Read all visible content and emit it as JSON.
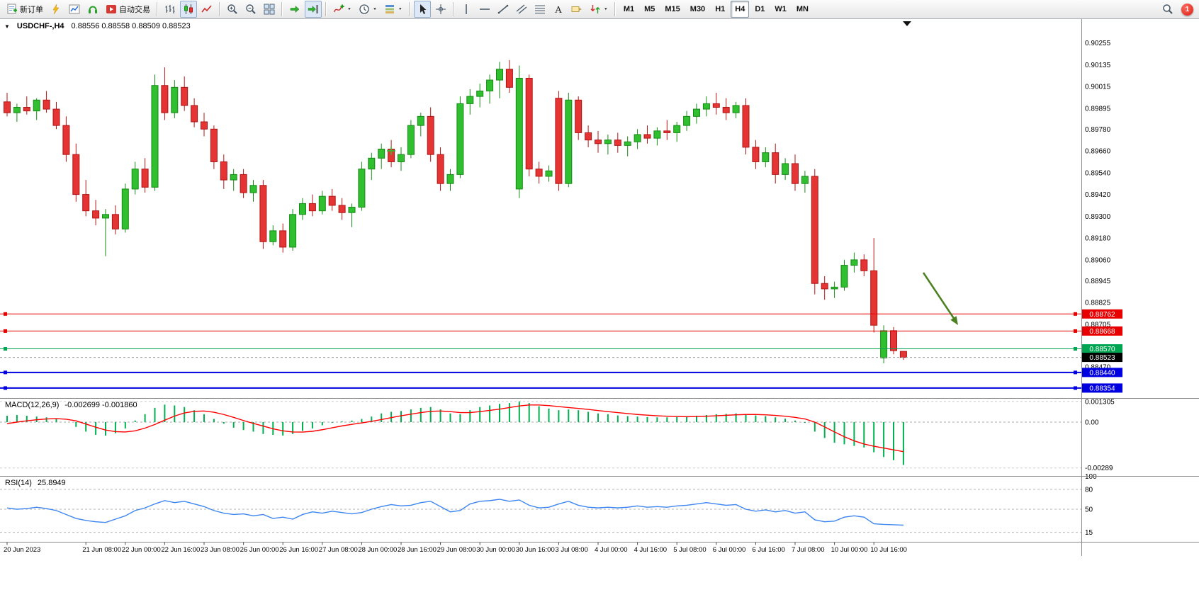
{
  "toolbar": {
    "items": [
      {
        "type": "btn",
        "name": "new-order-button",
        "icon": "new-order",
        "label": "新订单"
      },
      {
        "type": "btn",
        "name": "charts-button",
        "icon": "lightning"
      },
      {
        "type": "btn",
        "name": "chart-window-button",
        "icon": "chart-window"
      },
      {
        "type": "btn",
        "name": "sounds-button",
        "icon": "headset"
      },
      {
        "type": "btn",
        "name": "autotrading-button",
        "icon": "autotrade",
        "label": "自动交易"
      },
      {
        "type": "sep"
      },
      {
        "type": "btn",
        "name": "bar-chart-button",
        "icon": "ohlc-bars"
      },
      {
        "type": "btn",
        "name": "candlestick-chart-button",
        "icon": "candles",
        "active": true
      },
      {
        "type": "btn",
        "name": "line-chart-button",
        "icon": "line-chart"
      },
      {
        "type": "sep"
      },
      {
        "type": "btn",
        "name": "zoom-in-button",
        "icon": "zoom-in"
      },
      {
        "type": "btn",
        "name": "zoom-out-button",
        "icon": "zoom-out"
      },
      {
        "type": "btn",
        "name": "tile-windows-button",
        "icon": "tile-windows"
      },
      {
        "type": "sep"
      },
      {
        "type": "btn",
        "name": "auto-scroll-button",
        "icon": "auto-scroll"
      },
      {
        "type": "btn",
        "name": "chart-shift-button",
        "icon": "chart-shift",
        "active": true
      },
      {
        "type": "sep"
      },
      {
        "type": "btn",
        "name": "indicators-button",
        "icon": "indicators",
        "caret": true
      },
      {
        "type": "btn",
        "name": "periods-button",
        "icon": "periods",
        "caret": true
      },
      {
        "type": "btn",
        "name": "templates-button",
        "icon": "templates",
        "caret": true
      },
      {
        "type": "sep"
      },
      {
        "type": "btn",
        "name": "cursor-button",
        "icon": "cursor",
        "active": true
      },
      {
        "type": "btn",
        "name": "crosshair-button",
        "icon": "crosshair"
      },
      {
        "type": "sep"
      },
      {
        "type": "btn",
        "name": "vertical-line-button",
        "icon": "vline"
      },
      {
        "type": "btn",
        "name": "horizontal-line-button",
        "icon": "hline"
      },
      {
        "type": "btn",
        "name": "trendline-button",
        "icon": "trendline"
      },
      {
        "type": "btn",
        "name": "channel-button",
        "icon": "channel"
      },
      {
        "type": "btn",
        "name": "fibonacci-button",
        "icon": "fibo"
      },
      {
        "type": "btn",
        "name": "text-button",
        "icon": "text"
      },
      {
        "type": "btn",
        "name": "text-label-button",
        "icon": "text-label"
      },
      {
        "type": "btn",
        "name": "arrows-button",
        "icon": "arrows",
        "caret": true
      },
      {
        "type": "sep"
      },
      {
        "type": "tf",
        "name": "timeframe-m1",
        "label": "M1"
      },
      {
        "type": "tf",
        "name": "timeframe-m5",
        "label": "M5"
      },
      {
        "type": "tf",
        "name": "timeframe-m15",
        "label": "M15"
      },
      {
        "type": "tf",
        "name": "timeframe-m30",
        "label": "M30"
      },
      {
        "type": "tf",
        "name": "timeframe-h1",
        "label": "H1"
      },
      {
        "type": "tf",
        "name": "timeframe-h4",
        "label": "H4",
        "active": true
      },
      {
        "type": "tf",
        "name": "timeframe-d1",
        "label": "D1"
      },
      {
        "type": "tf",
        "name": "timeframe-w1",
        "label": "W1"
      },
      {
        "type": "tf",
        "name": "timeframe-mn",
        "label": "MN"
      }
    ],
    "right": {
      "search_icon": "search",
      "notification_count": "1"
    }
  },
  "chart_data": {
    "type": "candlestick",
    "symbol": "USDCHF",
    "timeframe": "H4",
    "title": "USDCHF-,H4",
    "ohlc_text": "0.88556 0.88558 0.88509 0.88523",
    "current": {
      "open": 0.88556,
      "high": 0.88558,
      "low": 0.88509,
      "close": 0.88523
    },
    "colors": {
      "up": "#2fbf2f",
      "up_stroke": "#168a16",
      "down": "#e43434",
      "down_stroke": "#b01515",
      "red_line": "#e80000",
      "green_line": "#00a551",
      "blue_line": "#0000e0",
      "bid_tag": "#000000",
      "macd_hist": "#00b050",
      "macd_signal": "#ff0000",
      "rsi_line": "#3d85f0",
      "arrow": "#4c8122"
    },
    "axis_prices": [
      0.90255,
      0.90135,
      0.90015,
      0.89895,
      0.8978,
      0.8966,
      0.8954,
      0.8942,
      0.893,
      0.8918,
      0.8906,
      0.88945,
      0.88825,
      0.88705,
      0.8847
    ],
    "hlines": [
      {
        "name": "resistance-line-1",
        "price": 0.88762,
        "label": "0.88762",
        "color": "#e80000",
        "width": 1
      },
      {
        "name": "resistance-line-2",
        "price": 0.88668,
        "label": "0.88668",
        "color": "#e80000",
        "width": 1
      },
      {
        "name": "support-line-green",
        "price": 0.8857,
        "label": "0.88570",
        "color": "#00a551",
        "width": 1
      },
      {
        "name": "support-line-blue-1",
        "price": 0.8844,
        "label": "0.88440",
        "color": "#0000e0",
        "width": 2
      },
      {
        "name": "support-line-blue-2",
        "price": 0.88354,
        "label": "0.88354",
        "color": "#0000e0",
        "width": 2
      }
    ],
    "bid_line": {
      "price": 0.88523,
      "label": "0.88523"
    },
    "annotations": [
      {
        "type": "arrow",
        "name": "sell-arrow",
        "direction": "down-right",
        "color": "#4c8122"
      },
      {
        "type": "plus-marker",
        "name": "plus-marker",
        "color": "#2fbf2f"
      }
    ],
    "time_labels": [
      "20 Jun 2023",
      "21 Jun 08:00",
      "22 Jun 00:00",
      "22 Jun 16:00",
      "23 Jun 08:00",
      "26 Jun 00:00",
      "26 Jun 16:00",
      "27 Jun 08:00",
      "28 Jun 00:00",
      "28 Jun 16:00",
      "29 Jun 08:00",
      "30 Jun 00:00",
      "30 Jun 16:00",
      "3 Jul 08:00",
      "4 Jul 00:00",
      "4 Jul 16:00",
      "5 Jul 08:00",
      "6 Jul 00:00",
      "6 Jul 16:00",
      "7 Jul 08:00",
      "10 Jul 00:00",
      "10 Jul 16:00"
    ],
    "time_label_bars": [
      0,
      8,
      12,
      16,
      20,
      24,
      28,
      32,
      36,
      40,
      44,
      48,
      52,
      56,
      60,
      64,
      68,
      72,
      76,
      80,
      84,
      88
    ],
    "candles": [
      [
        0.8993,
        0.8998,
        0.8985,
        0.8987
      ],
      [
        0.8987,
        0.8992,
        0.8982,
        0.899
      ],
      [
        0.899,
        0.8996,
        0.8986,
        0.8988
      ],
      [
        0.8988,
        0.8995,
        0.8983,
        0.8994
      ],
      [
        0.8994,
        0.8999,
        0.8987,
        0.8989
      ],
      [
        0.8989,
        0.8993,
        0.8978,
        0.898
      ],
      [
        0.898,
        0.8985,
        0.896,
        0.8964
      ],
      [
        0.8964,
        0.897,
        0.8938,
        0.8942
      ],
      [
        0.8942,
        0.895,
        0.893,
        0.8933
      ],
      [
        0.8933,
        0.8939,
        0.8925,
        0.8929
      ],
      [
        0.8929,
        0.8934,
        0.8908,
        0.8931
      ],
      [
        0.8931,
        0.8936,
        0.892,
        0.8923
      ],
      [
        0.8923,
        0.8948,
        0.8921,
        0.8945
      ],
      [
        0.8945,
        0.896,
        0.8942,
        0.8956
      ],
      [
        0.8956,
        0.8962,
        0.8943,
        0.8946
      ],
      [
        0.8946,
        0.9008,
        0.8944,
        0.9002
      ],
      [
        0.9002,
        0.9012,
        0.8983,
        0.8987
      ],
      [
        0.8987,
        0.9005,
        0.8984,
        0.9001
      ],
      [
        0.9001,
        0.9007,
        0.8988,
        0.8991
      ],
      [
        0.8991,
        0.8995,
        0.8979,
        0.8982
      ],
      [
        0.8982,
        0.8987,
        0.8974,
        0.8978
      ],
      [
        0.8978,
        0.898,
        0.8956,
        0.896
      ],
      [
        0.896,
        0.8964,
        0.8945,
        0.895
      ],
      [
        0.895,
        0.8956,
        0.8944,
        0.8953
      ],
      [
        0.8953,
        0.8956,
        0.894,
        0.8943
      ],
      [
        0.8943,
        0.895,
        0.8938,
        0.8947
      ],
      [
        0.8947,
        0.895,
        0.8912,
        0.8916
      ],
      [
        0.8916,
        0.8925,
        0.8914,
        0.8922
      ],
      [
        0.8922,
        0.8926,
        0.891,
        0.8913
      ],
      [
        0.8913,
        0.8934,
        0.8911,
        0.8931
      ],
      [
        0.8931,
        0.894,
        0.8928,
        0.8937
      ],
      [
        0.8937,
        0.8942,
        0.893,
        0.8933
      ],
      [
        0.8933,
        0.8944,
        0.8931,
        0.8941
      ],
      [
        0.8941,
        0.8945,
        0.8933,
        0.8936
      ],
      [
        0.8936,
        0.894,
        0.8928,
        0.8932
      ],
      [
        0.8932,
        0.8937,
        0.8924,
        0.8935
      ],
      [
        0.8935,
        0.896,
        0.8933,
        0.8956
      ],
      [
        0.8956,
        0.8965,
        0.895,
        0.8962
      ],
      [
        0.8962,
        0.897,
        0.8956,
        0.8967
      ],
      [
        0.8967,
        0.8972,
        0.8957,
        0.896
      ],
      [
        0.896,
        0.8968,
        0.8955,
        0.8964
      ],
      [
        0.8964,
        0.8983,
        0.8962,
        0.898
      ],
      [
        0.898,
        0.8987,
        0.8974,
        0.8985
      ],
      [
        0.8985,
        0.899,
        0.896,
        0.8964
      ],
      [
        0.8964,
        0.8968,
        0.8944,
        0.8948
      ],
      [
        0.8948,
        0.8956,
        0.8944,
        0.8953
      ],
      [
        0.8953,
        0.8996,
        0.8951,
        0.8992
      ],
      [
        0.8992,
        0.9,
        0.8986,
        0.8996
      ],
      [
        0.8996,
        0.9003,
        0.899,
        0.8999
      ],
      [
        0.8999,
        0.9008,
        0.8992,
        0.9005
      ],
      [
        0.9005,
        0.9015,
        0.8995,
        0.9011
      ],
      [
        0.9011,
        0.9016,
        0.8998,
        0.9001
      ],
      [
        0.8945,
        0.9013,
        0.894,
        0.9006
      ],
      [
        0.9006,
        0.9008,
        0.8952,
        0.8956
      ],
      [
        0.8956,
        0.896,
        0.8948,
        0.8952
      ],
      [
        0.8952,
        0.8958,
        0.8949,
        0.8955
      ],
      [
        0.8995,
        0.8999,
        0.8944,
        0.8948
      ],
      [
        0.8948,
        0.8998,
        0.8946,
        0.8994
      ],
      [
        0.8994,
        0.8996,
        0.8972,
        0.8976
      ],
      [
        0.8976,
        0.898,
        0.8968,
        0.8972
      ],
      [
        0.8972,
        0.8977,
        0.8965,
        0.897
      ],
      [
        0.897,
        0.8975,
        0.8964,
        0.8972
      ],
      [
        0.8972,
        0.8976,
        0.8965,
        0.8969
      ],
      [
        0.8969,
        0.8974,
        0.8963,
        0.8971
      ],
      [
        0.8971,
        0.8978,
        0.8967,
        0.8975
      ],
      [
        0.8975,
        0.898,
        0.897,
        0.8973
      ],
      [
        0.8973,
        0.8979,
        0.8969,
        0.8977
      ],
      [
        0.8977,
        0.8983,
        0.8972,
        0.8976
      ],
      [
        0.8976,
        0.8982,
        0.8971,
        0.898
      ],
      [
        0.898,
        0.8988,
        0.8977,
        0.8985
      ],
      [
        0.8985,
        0.8992,
        0.8981,
        0.8989
      ],
      [
        0.8989,
        0.8996,
        0.8985,
        0.8992
      ],
      [
        0.8992,
        0.8998,
        0.8986,
        0.899
      ],
      [
        0.899,
        0.8995,
        0.8983,
        0.8987
      ],
      [
        0.8987,
        0.8993,
        0.8984,
        0.8991
      ],
      [
        0.8991,
        0.8995,
        0.8964,
        0.8968
      ],
      [
        0.8968,
        0.8972,
        0.8956,
        0.896
      ],
      [
        0.896,
        0.8968,
        0.8957,
        0.8965
      ],
      [
        0.8965,
        0.897,
        0.8948,
        0.8953
      ],
      [
        0.8953,
        0.8962,
        0.895,
        0.8959
      ],
      [
        0.8959,
        0.8964,
        0.8944,
        0.8948
      ],
      [
        0.8948,
        0.8955,
        0.8943,
        0.8952
      ],
      [
        0.8952,
        0.8956,
        0.8887,
        0.8893
      ],
      [
        0.8893,
        0.8897,
        0.8884,
        0.889
      ],
      [
        0.889,
        0.8894,
        0.8885,
        0.8891
      ],
      [
        0.8891,
        0.8906,
        0.8889,
        0.8903
      ],
      [
        0.8903,
        0.891,
        0.8899,
        0.8906
      ],
      [
        0.8906,
        0.8909,
        0.8897,
        0.89
      ],
      [
        0.89,
        0.8918,
        0.8866,
        0.887
      ],
      [
        0.8852,
        0.887,
        0.8849,
        0.8867
      ],
      [
        0.8867,
        0.8869,
        0.8854,
        0.8856
      ],
      [
        0.88556,
        0.88558,
        0.88509,
        0.88523
      ]
    ],
    "macd": {
      "title": "MACD(12,26,9)",
      "values_text": "-0.002699 -0.001860",
      "axis_labels": [
        {
          "value": 0.001305,
          "label": "0.001305"
        },
        {
          "value": 0,
          "label": "0.00"
        },
        {
          "value": -0.00289,
          "label": "-0.00289"
        }
      ],
      "histogram": [
        0.0004,
        0.00045,
        0.0004,
        0.00035,
        0.0003,
        0.0002,
        0,
        -0.0003,
        -0.0006,
        -0.0008,
        -0.00085,
        -0.0007,
        -0.0004,
        0.0001,
        0.0005,
        0.0009,
        0.0011,
        0.00105,
        0.00095,
        0.00075,
        0.0005,
        0.0002,
        -0.0001,
        -0.00035,
        -0.0005,
        -0.0006,
        -0.00075,
        -0.0008,
        -0.00085,
        -0.00075,
        -0.00055,
        -0.0004,
        -0.0002,
        -5e-05,
        5e-05,
        0.0001,
        0.0002,
        0.00035,
        0.00055,
        0.00065,
        0.0007,
        0.0008,
        0.0009,
        0.00095,
        0.0008,
        0.00055,
        0.0005,
        0.00075,
        0.00095,
        0.00105,
        0.00115,
        0.0012,
        0.0013,
        0.0012,
        0.001,
        0.00085,
        0.00075,
        0.0008,
        0.00075,
        0.00065,
        0.00055,
        0.0005,
        0.00042,
        0.00038,
        0.00035,
        0.00032,
        0.0003,
        0.0003,
        0.00032,
        0.00035,
        0.0004,
        0.00045,
        0.0005,
        0.00052,
        0.00055,
        0.0005,
        0.00042,
        0.00038,
        0.0003,
        0.00022,
        0.0001,
        -5e-05,
        -0.0006,
        -0.001,
        -0.0013,
        -0.0014,
        -0.0015,
        -0.0016,
        -0.0019,
        -0.0022,
        -0.0024,
        -0.002699
      ],
      "signal": [
        -0.0001,
        0,
        8e-05,
        0.00015,
        0.0002,
        0.00022,
        0.00018,
        8e-05,
        -0.00012,
        -0.00032,
        -0.0005,
        -0.0006,
        -0.00062,
        -0.00055,
        -0.00038,
        -0.00015,
        0.00012,
        0.00038,
        0.00058,
        0.00068,
        0.0007,
        0.00062,
        0.00048,
        0.0003,
        0.0001,
        -8e-05,
        -0.00025,
        -0.00042,
        -0.00055,
        -0.00062,
        -0.00063,
        -0.00058,
        -0.00048,
        -0.00036,
        -0.00024,
        -0.00014,
        -5e-05,
        5e-05,
        0.00016,
        0.00028,
        0.0004,
        0.0005,
        0.0006,
        0.00068,
        0.0007,
        0.00066,
        0.0006,
        0.0006,
        0.00066,
        0.00074,
        0.00082,
        0.00092,
        0.00102,
        0.00108,
        0.00108,
        0.00104,
        0.00098,
        0.00092,
        0.00086,
        0.0008,
        0.00073,
        0.00066,
        0.0006,
        0.00054,
        0.00048,
        0.00044,
        0.0004,
        0.00037,
        0.00035,
        0.00034,
        0.00035,
        0.00037,
        0.0004,
        0.00043,
        0.00046,
        0.00048,
        0.00048,
        0.00046,
        0.00042,
        0.00037,
        0.0003,
        0.0002,
        0,
        -0.0003,
        -0.00062,
        -0.00092,
        -0.00118,
        -0.00138,
        -0.00152,
        -0.00163,
        -0.00175,
        -0.00186
      ]
    },
    "rsi": {
      "title": "RSI(14)",
      "value_text": "25.8949",
      "axis_labels": [
        {
          "value": 100,
          "label": "100"
        },
        {
          "value": 80,
          "label": "80"
        },
        {
          "value": 50,
          "label": "50"
        },
        {
          "value": 15,
          "label": "15"
        }
      ],
      "levels": [
        80,
        50,
        15
      ],
      "values": [
        52,
        50,
        51,
        53,
        51,
        48,
        42,
        36,
        33,
        31,
        30,
        35,
        40,
        48,
        52,
        58,
        63,
        60,
        62,
        58,
        54,
        48,
        44,
        42,
        43,
        40,
        42,
        36,
        38,
        35,
        42,
        46,
        44,
        47,
        45,
        43,
        45,
        50,
        54,
        57,
        55,
        56,
        60,
        62,
        54,
        46,
        48,
        58,
        62,
        63,
        65,
        62,
        64,
        56,
        52,
        53,
        58,
        62,
        56,
        53,
        52,
        53,
        52,
        53,
        55,
        53,
        54,
        53,
        55,
        56,
        58,
        60,
        58,
        56,
        57,
        50,
        47,
        49,
        46,
        48,
        44,
        46,
        34,
        31,
        32,
        38,
        40,
        38,
        28,
        27,
        26.5,
        25.89
      ]
    }
  }
}
